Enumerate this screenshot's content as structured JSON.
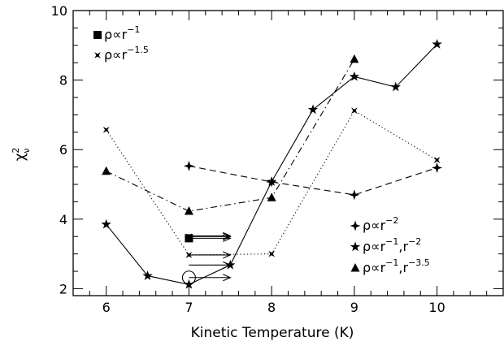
{
  "chart_data": {
    "type": "line",
    "xlabel": "Kinetic Temperature (K)",
    "ylabel": "χ²ν",
    "xlim": [
      5.6,
      10.8
    ],
    "ylim": [
      1.8,
      10
    ],
    "xticks": [
      6,
      7,
      8,
      9,
      10
    ],
    "yticks": [
      2,
      4,
      6,
      8,
      10
    ],
    "xtick_labels": [
      "6",
      "7",
      "8",
      "9",
      "10"
    ],
    "ytick_labels": [
      "2",
      "4",
      "6",
      "8",
      "10"
    ],
    "legend_placement": [
      "top-left",
      "bottom-right"
    ],
    "series": [
      {
        "name": "ρ∝r⁻¹",
        "marker": "square",
        "line": "none",
        "points": [
          [
            7,
            3.45
          ]
        ],
        "lower_limit_arrows": [
          [
            7,
            3.45
          ]
        ]
      },
      {
        "name": "ρ∝r⁻¹·⁵",
        "marker": "cross",
        "line": "dotted",
        "points": [
          [
            6,
            6.57
          ],
          [
            7,
            2.97
          ],
          [
            8,
            3.0
          ],
          [
            9,
            7.12
          ],
          [
            10,
            5.7
          ]
        ],
        "lower_limit_arrows": [
          [
            7,
            2.97
          ]
        ]
      },
      {
        "name": "ρ∝r⁻²",
        "marker": "fourstar",
        "line": "dashed",
        "points": [
          [
            7,
            5.53
          ],
          [
            8,
            5.07
          ],
          [
            9,
            4.7
          ],
          [
            10,
            5.48
          ]
        ],
        "lower_limit_arrows": []
      },
      {
        "name": "ρ∝r⁻¹,r⁻²",
        "marker": "star",
        "line": "solid",
        "points": [
          [
            6,
            3.85
          ],
          [
            6.5,
            2.37
          ],
          [
            7,
            2.12
          ],
          [
            7.5,
            2.68
          ],
          [
            8,
            5.08
          ],
          [
            8.5,
            7.15
          ],
          [
            9,
            8.1
          ],
          [
            9.5,
            7.8
          ],
          [
            10,
            9.03
          ]
        ],
        "lower_limit_arrows": [
          [
            7,
            2.68
          ],
          [
            7,
            2.32
          ]
        ],
        "circled": [
          [
            7,
            2.32
          ]
        ]
      },
      {
        "name": "ρ∝r⁻¹,r⁻³·⁵",
        "marker": "triangle",
        "line": "dashdot",
        "points": [
          [
            6,
            5.38
          ],
          [
            7,
            4.23
          ],
          [
            8,
            4.62
          ],
          [
            9,
            8.6
          ]
        ],
        "lower_limit_arrows": [
          [
            7,
            3.52
          ]
        ]
      }
    ],
    "extra_points": [
      {
        "series": "ρ∝r⁻¹·⁵",
        "marker": "cross",
        "points": [
          [
            7,
            3.5
          ]
        ]
      }
    ],
    "legend": {
      "top_left": [
        {
          "marker": "square",
          "base": "ρ∝r",
          "exps": [
            "−1"
          ]
        },
        {
          "marker": "cross",
          "base": "ρ∝r",
          "exps": [
            "−1.5"
          ]
        }
      ],
      "bottom_right": [
        {
          "marker": "fourstar",
          "parts": [
            "ρ∝r",
            "−2"
          ]
        },
        {
          "marker": "star",
          "parts": [
            "ρ∝r",
            "−1",
            ",r",
            "−2"
          ]
        },
        {
          "marker": "triangle",
          "parts": [
            "ρ∝r",
            "−1",
            ",r",
            "−3.5"
          ]
        }
      ]
    }
  }
}
